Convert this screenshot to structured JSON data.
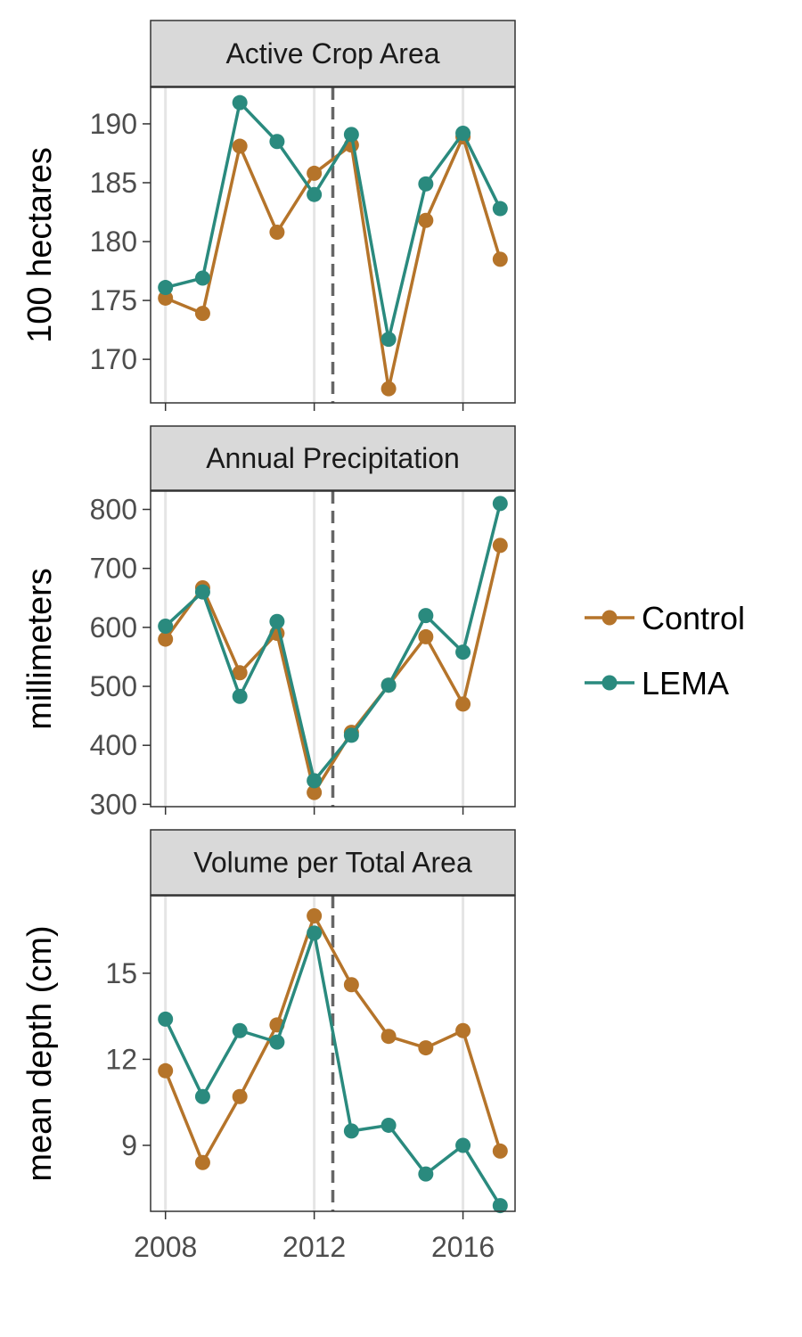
{
  "colors": {
    "control": "#B5742A",
    "lema": "#2A8A7E",
    "strip_fill": "#D9D9D9",
    "gridline": "#E5E5E5",
    "vline": "#666666"
  },
  "legend": {
    "items": [
      {
        "label": "Control",
        "color_key": "control"
      },
      {
        "label": "LEMA",
        "color_key": "lema"
      }
    ],
    "position": "right"
  },
  "x_axis": {
    "ticks": [
      2008,
      2012,
      2016
    ],
    "tick_labels": [
      "2008",
      "2012",
      "2016"
    ],
    "range": [
      2007.6,
      2017.4
    ]
  },
  "treatment_year": 2012.5,
  "chart_data": [
    {
      "type": "line",
      "title": "Active Crop Area",
      "ylabel": "100 hectares",
      "ylim": [
        166.3,
        193.1
      ],
      "yticks": [
        170,
        175,
        180,
        185,
        190
      ],
      "x": [
        2008,
        2009,
        2010,
        2011,
        2012,
        2013,
        2014,
        2015,
        2016,
        2017
      ],
      "series": [
        {
          "name": "Control",
          "values": [
            175.2,
            173.9,
            188.1,
            180.8,
            185.8,
            188.2,
            167.5,
            181.8,
            188.9,
            178.5
          ]
        },
        {
          "name": "LEMA",
          "values": [
            176.1,
            176.9,
            191.8,
            188.5,
            184.0,
            189.1,
            171.7,
            184.9,
            189.2,
            182.8
          ]
        }
      ],
      "grid": true
    },
    {
      "type": "line",
      "title": "Annual Precipitation",
      "ylabel": "millimeters",
      "ylim": [
        296,
        831
      ],
      "yticks": [
        300,
        400,
        500,
        600,
        700,
        800
      ],
      "x": [
        2008,
        2009,
        2010,
        2011,
        2012,
        2013,
        2014,
        2015,
        2016,
        2017
      ],
      "series": [
        {
          "name": "Control",
          "values": [
            580,
            667,
            523,
            590,
            320,
            422,
            502,
            584,
            470,
            739
          ]
        },
        {
          "name": "LEMA",
          "values": [
            602,
            660,
            483,
            610,
            340,
            417,
            502,
            620,
            558,
            810
          ]
        }
      ],
      "grid": true
    },
    {
      "type": "line",
      "title": "Volume per Total Area",
      "ylabel": "mean depth (cm)",
      "ylim": [
        6.7,
        17.7
      ],
      "yticks": [
        9,
        12,
        15
      ],
      "x": [
        2008,
        2009,
        2010,
        2011,
        2012,
        2013,
        2014,
        2015,
        2016,
        2017
      ],
      "series": [
        {
          "name": "Control",
          "values": [
            11.6,
            8.4,
            10.7,
            13.2,
            17.0,
            14.6,
            12.8,
            12.4,
            13.0,
            8.8
          ]
        },
        {
          "name": "LEMA",
          "values": [
            13.4,
            10.7,
            13.0,
            12.6,
            16.4,
            9.5,
            9.7,
            8.0,
            9.0,
            6.9
          ]
        }
      ],
      "grid": true
    }
  ]
}
